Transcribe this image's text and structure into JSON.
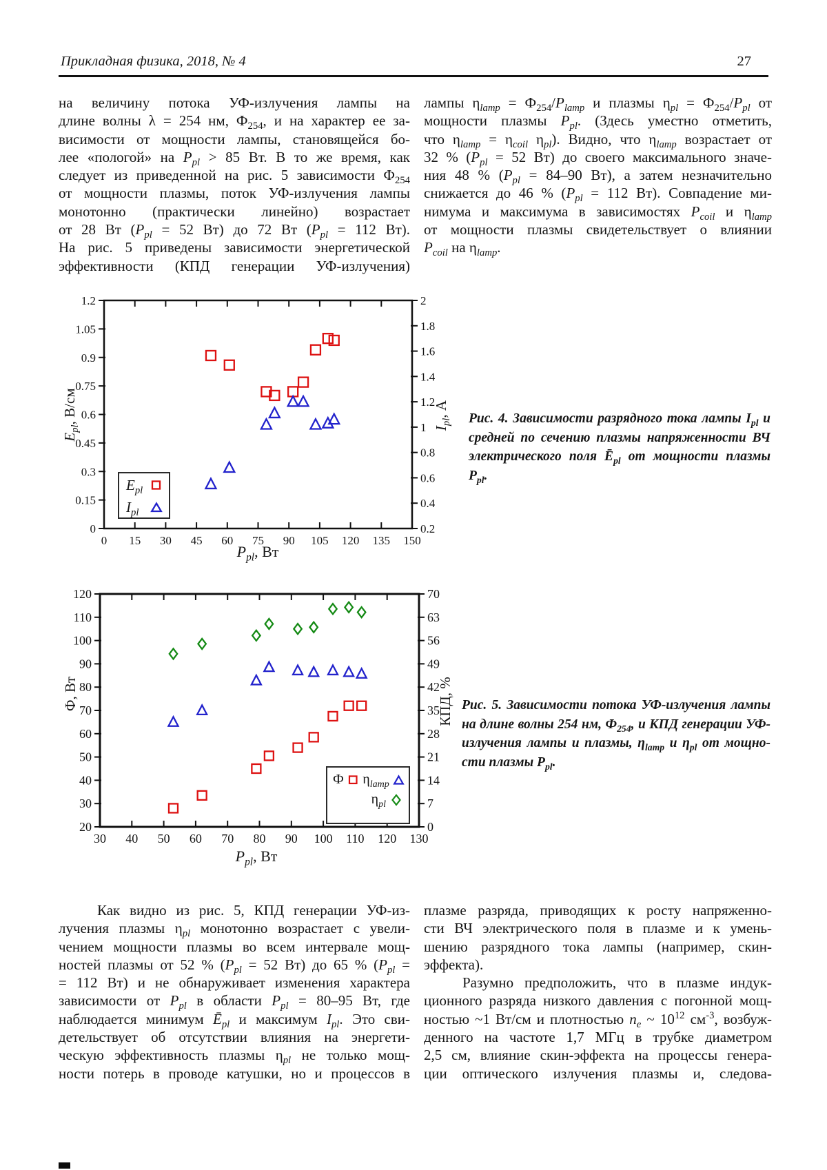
{
  "header": {
    "journal": "Прикладная физика, 2018, № 4",
    "page_number": "27"
  },
  "top_text": {
    "left_lines": [
      {
        "h": "на величину потока УФ-излучения лампы на",
        "c": ""
      },
      {
        "h": "длине волны λ = 254 нм, Ф<sub>254</sub>, и на характер ее за-",
        "c": ""
      },
      {
        "h": "висимости от мощности лампы, становящейся бо-",
        "c": ""
      },
      {
        "h": "лее «пологой» на <i>P<sub>pl</sub></i> &gt; 85 Вт. В то же время, как",
        "c": ""
      },
      {
        "h": "следует из приведенной на рис. 5 зависимости Ф<sub>254</sub>",
        "c": ""
      },
      {
        "h": "от мощности плазмы, поток УФ-излучения лампы",
        "c": ""
      },
      {
        "h": "монотонно (практически линейно) возрастает",
        "c": ""
      },
      {
        "h": "от 28 Вт (<i>P<sub>pl</sub></i> = 52 Вт) до 72 Вт (<i>P<sub>pl</sub></i> = 112 Вт).",
        "c": ""
      },
      {
        "h": "На рис. 5 приведены зависимости энергетической",
        "c": ""
      },
      {
        "h": "эффективности (КПД генерации УФ-излучения)",
        "c": ""
      }
    ],
    "right_lines": [
      {
        "h": "лампы η<sub><i>lamp</i></sub> = Ф<sub>254</sub>/<i>P<sub>lamp</sub></i> и плазмы η<sub><i>pl</i></sub> = Ф<sub>254</sub>/<i>P<sub>pl</sub></i> от",
        "c": ""
      },
      {
        "h": "мощности плазмы <i>P<sub>pl</sub></i>. (Здесь уместно отметить,",
        "c": ""
      },
      {
        "h": "что η<sub><i>lamp</i></sub> = η<sub><i>coil</i></sub> η<sub><i>pl</i></sub>). Видно, что η<sub><i>lamp</i></sub> возрастает от",
        "c": ""
      },
      {
        "h": "32 % (<i>P<sub>pl</sub></i> = 52 Вт) до своего максимального значе-",
        "c": ""
      },
      {
        "h": "ния 48 % (<i>P<sub>pl</sub></i> = 84–90 Вт), а затем незначительно",
        "c": ""
      },
      {
        "h": "снижается до 46 % (<i>P<sub>pl</sub></i> = 112 Вт). Совпадение ми-",
        "c": ""
      },
      {
        "h": "нимума и максимума в зависимостях <i>P<sub>coil</sub></i> и η<sub><i>lamp</i></sub>",
        "c": ""
      },
      {
        "h": "от мощности плазмы свидетельствует о влиянии",
        "c": ""
      },
      {
        "h": "<i>P<sub>coil</sub></i> на η<sub><i>lamp</i></sub>.",
        "c": "last"
      }
    ]
  },
  "figure4": {
    "xlabel_html": "<i>P<sub>pl</sub></i>, Вт",
    "ylabel_left_html": "<i>E<sub>pl</sub></i>, В/см",
    "ylabel_right_html": "<i>I<sub>pl</sub></i>, А",
    "legend": {
      "item1_html": "<i>E<sub>pl</sub></i>",
      "item2_html": "<i>I<sub>pl</sub></i>"
    },
    "caption_lines": [
      {
        "h": "Рис. 4. Зависимости разрядного тока лампы I<sub>pl</sub> и",
        "c": ""
      },
      {
        "h": "средней по сечению плазмы напряженности ВЧ",
        "c": ""
      },
      {
        "h": "электрического поля Ē<sub>pl</sub> от мощности плазмы P<sub>pl</sub>.",
        "c": "last"
      }
    ]
  },
  "figure5": {
    "xlabel_html": "<i>P<sub>pl</sub></i>, Вт",
    "ylabel_left_html": "Ф, Вт",
    "ylabel_right_html": "КПД, %",
    "legend": {
      "item1_html": "Ф",
      "item2_html": "η<sub><i>lamp</i></sub>",
      "item3_html": "η<sub><i>pl</i></sub>"
    },
    "caption_lines": [
      {
        "h": "Рис. 5. Зависимости потока УФ-излучения лампы",
        "c": ""
      },
      {
        "h": "на длине волны 254 нм, Ф<sub>254</sub>, и КПД генерации УФ-",
        "c": ""
      },
      {
        "h": "излучения лампы и плазмы, η<sub>lamp</sub> и η<sub>pl</sub> от мощно-",
        "c": ""
      },
      {
        "h": "сти плазмы P<sub>pl</sub>.",
        "c": "last"
      }
    ]
  },
  "bottom_text": {
    "left_lines": [
      {
        "h": "Как видно из рис. 5, КПД генерации УФ-из-",
        "c": "indent"
      },
      {
        "h": "лучения плазмы η<sub><i>pl</i></sub> монотонно возрастает с увели-",
        "c": ""
      },
      {
        "h": "чением мощности плазмы во всем интервале мощ-",
        "c": ""
      },
      {
        "h": "ностей плазмы от 52 % (<i>P<sub>pl</sub></i> = 52 Вт) до 65 % (<i>P<sub>pl</sub></i> =",
        "c": ""
      },
      {
        "h": "= 112 Вт) и не обнаруживает изменения характера",
        "c": ""
      },
      {
        "h": "зависимости от <i>P<sub>pl</sub></i> в области <i>P<sub>pl</sub></i> = 80–95 Вт, где",
        "c": ""
      },
      {
        "h": "наблюдается минимум <i>Ē<sub>pl</sub></i> и максимум <i>I<sub>pl</sub></i>. Это сви-",
        "c": ""
      },
      {
        "h": "детельствует об отсутствии влияния на энергети-",
        "c": ""
      },
      {
        "h": "ческую эффективность плазмы η<sub><i>pl</i></sub> не только мощ-",
        "c": ""
      },
      {
        "h": "ности потерь в проводе катушки, но и процессов в",
        "c": ""
      }
    ],
    "right_lines": [
      {
        "h": "плазме разряда, приводящих к росту напряженно-",
        "c": ""
      },
      {
        "h": "сти ВЧ электрического поля в плазме и к умень-",
        "c": ""
      },
      {
        "h": "шению разрядного тока лампы (например, скин-",
        "c": ""
      },
      {
        "h": "эффекта).",
        "c": "last"
      },
      {
        "h": "Разумно предположить, что в плазме индук-",
        "c": "indent"
      },
      {
        "h": "ционного разряда низкого давления с погонной мощ-",
        "c": ""
      },
      {
        "h": "ностью ~1 Вт/см и плотностью <i>n<sub>e</sub></i> ~ 10<sup>12</sup> см<sup>-3</sup>, возбуж-",
        "c": ""
      },
      {
        "h": "денного на частоте 1,7 МГц в трубке диаметром",
        "c": ""
      },
      {
        "h": "2,5 см, влияние скин-эффекта на процессы генера-",
        "c": ""
      },
      {
        "h": "ции оптического излучения плазмы и, следова-",
        "c": ""
      }
    ]
  },
  "chart_data": [
    {
      "type": "scatter",
      "figure": "Рис. 4",
      "title": "",
      "xlabel": "P_pl, Вт",
      "ylabel_left": "E_pl, В/см",
      "ylabel_right": "I_pl, А",
      "xlim": [
        0,
        150
      ],
      "xticks": [
        0,
        15,
        30,
        45,
        60,
        75,
        90,
        105,
        120,
        135,
        150
      ],
      "ylim_left": [
        0,
        1.2
      ],
      "yticks_left": [
        0,
        0.15,
        0.3,
        0.45,
        0.6,
        0.75,
        0.9,
        1.05,
        1.2
      ],
      "ylim_right": [
        0.2,
        2
      ],
      "yticks_right": [
        0.2,
        0.4,
        0.6,
        0.8,
        1,
        1.2,
        1.4,
        1.6,
        1.8,
        2
      ],
      "grid": false,
      "legend_position": "bottom-left",
      "series": [
        {
          "id": "E_pl",
          "name": "E_pl",
          "axis": "left",
          "marker": "square",
          "color": "#dd1111",
          "size": 14,
          "x": [
            52,
            61,
            79,
            83,
            92,
            97,
            103,
            109,
            112
          ],
          "y": [
            0.91,
            0.86,
            0.72,
            0.7,
            0.72,
            0.77,
            0.94,
            1.0,
            0.99
          ]
        },
        {
          "id": "I_pl",
          "name": "I_pl",
          "axis": "right",
          "marker": "triangle",
          "color": "#2222cc",
          "size": 15,
          "x": [
            52,
            61,
            79,
            83,
            92,
            97,
            103,
            109,
            112
          ],
          "y": [
            0.55,
            0.68,
            1.02,
            1.11,
            1.2,
            1.2,
            1.02,
            1.03,
            1.06
          ]
        }
      ]
    },
    {
      "type": "scatter",
      "figure": "Рис. 5",
      "title": "",
      "xlabel": "P_pl, Вт",
      "ylabel_left": "Ф, Вт",
      "ylabel_right": "КПД, %",
      "xlim": [
        30,
        130
      ],
      "xticks": [
        30,
        40,
        50,
        60,
        70,
        80,
        90,
        100,
        110,
        120,
        130
      ],
      "ylim_left": [
        20,
        120
      ],
      "yticks_left": [
        20,
        30,
        40,
        50,
        60,
        70,
        80,
        90,
        100,
        110,
        120
      ],
      "ylim_right": [
        0,
        70
      ],
      "yticks_right": [
        0,
        7,
        14,
        21,
        28,
        35,
        42,
        49,
        56,
        63,
        70
      ],
      "grid": false,
      "legend_position": "bottom-right",
      "series": [
        {
          "id": "Phi",
          "name": "Ф",
          "axis": "left",
          "marker": "square",
          "color": "#dd1111",
          "size": 13,
          "x": [
            53,
            62,
            79,
            83,
            92,
            97,
            103,
            108,
            112
          ],
          "y": [
            28,
            33.5,
            45,
            50.5,
            54,
            58.5,
            67.5,
            72,
            72
          ]
        },
        {
          "id": "eta_lamp",
          "name": "η_lamp",
          "axis": "right",
          "marker": "triangle",
          "color": "#2222cc",
          "size": 14,
          "x": [
            53,
            62,
            79,
            83,
            92,
            97,
            103,
            108,
            112
          ],
          "y": [
            31.5,
            35,
            44,
            48,
            47,
            46.5,
            47,
            46.5,
            46
          ]
        },
        {
          "id": "eta_pl",
          "name": "η_pl",
          "axis": "right",
          "marker": "diamond",
          "color": "#148a14",
          "size": 13,
          "x": [
            53,
            62,
            79,
            83,
            92,
            97,
            103,
            108,
            112
          ],
          "y": [
            52,
            55,
            57.5,
            61,
            59.5,
            60,
            65.5,
            66,
            64.5
          ]
        }
      ]
    }
  ]
}
